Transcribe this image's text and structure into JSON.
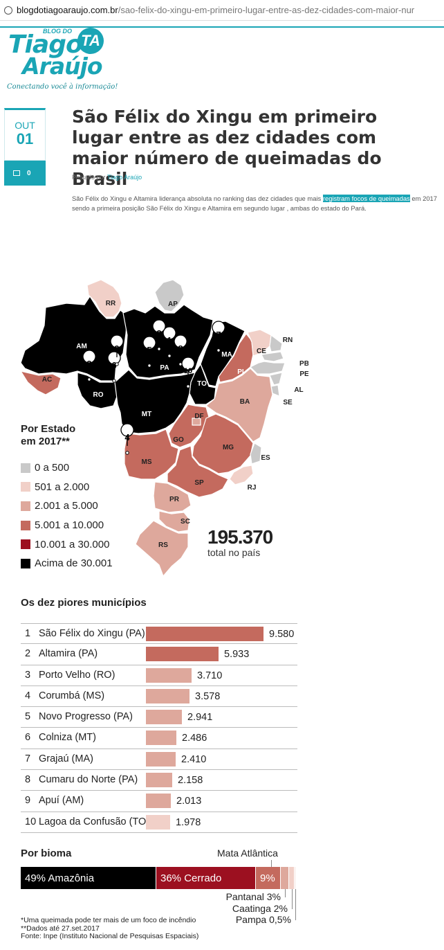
{
  "browser": {
    "url_domain": "blogdotiagoaraujo.com.br",
    "url_path": "/sao-felix-do-xingu-em-primeiro-lugar-entre-as-dez-cidades-com-maior-nur"
  },
  "logo": {
    "blog_do": "BLOG DO",
    "line1": "Tiago",
    "line2": "Araújo",
    "badge": "TA",
    "slogan": "Conectando você à informação!"
  },
  "post": {
    "month": "OUT",
    "day": "01",
    "comments": "0",
    "title": "São Félix do Xingu em primeiro lugar entre as dez cidades com maior número de queimadas do Brasil",
    "byline_prefix": "Postado por",
    "author": "Tiago Araújo",
    "intro_part1": "São Félix do Xingu e Altamira liderança absoluta no ranking das dez cidades que mais ",
    "intro_highlight": "registram focos de queimadas",
    "intro_part2": " em 2017 sendo a primeira posição São Félix do Xingu e Altamira em segundo lugar , ambas do estado do Pará."
  },
  "infographic": {
    "legend_title_1": "Por Estado",
    "legend_title_2": "em 2017**",
    "legend": [
      {
        "label": "0 a 500",
        "color": "#c9c9c9"
      },
      {
        "label": "501 a 2.000",
        "color": "#f1d0c8"
      },
      {
        "label": "2.001 a 5.000",
        "color": "#dea89c"
      },
      {
        "label": "5.001 a 10.000",
        "color": "#c46a5e"
      },
      {
        "label": "10.001 a 30.000",
        "color": "#9c1020"
      },
      {
        "label": "Acima de 30.001",
        "color": "#000000"
      }
    ],
    "total_number": "195.370",
    "total_label": "total no país",
    "states": {
      "RR": "RR",
      "AP": "AP",
      "AM": "AM",
      "PA": "PA",
      "MA": "MA",
      "CE": "CE",
      "RN": "RN",
      "PB": "PB",
      "PE": "PE",
      "AL": "AL",
      "SE": "SE",
      "PI": "PI",
      "AC": "AC",
      "RO": "RO",
      "TO": "TO",
      "BA": "BA",
      "MT": "MT",
      "DF": "DF",
      "GO": "GO",
      "MG": "MG",
      "ES": "ES",
      "MS": "MS",
      "SP": "SP",
      "RJ": "RJ",
      "PR": "PR",
      "SC": "SC",
      "RS": "RS"
    },
    "pins": [
      "1",
      "2",
      "3",
      "4",
      "5",
      "6",
      "7",
      "8",
      "9",
      "10"
    ],
    "worst_title": "Os dez piores municípios",
    "biome_title": "Por bioma",
    "biome_mata_label": "Mata Atlântica",
    "notes": [
      "*Uma queimada pode ter mais de um foco de incêndio",
      "**Dados até 27.set.2017",
      "Fonte: Inpe (Instituto Nacional de Pesquisas Espaciais)"
    ]
  },
  "chart_data": [
    {
      "type": "bar",
      "title": "Os dez piores municípios",
      "categories": [
        "São Félix do Xingu (PA)",
        "Altamira (PA)",
        "Porto Velho (RO)",
        "Corumbá (MS)",
        "Novo Progresso (PA)",
        "Colniza (MT)",
        "Grajaú (MA)",
        "Cumaru do Norte (PA)",
        "Apuí (AM)",
        "Lagoa da Confusão (TO)"
      ],
      "ranks": [
        "1",
        "2",
        "3",
        "4",
        "5",
        "6",
        "7",
        "8",
        "9",
        "10"
      ],
      "values": [
        9580,
        5933,
        3710,
        3578,
        2941,
        2486,
        2410,
        2158,
        2013,
        1978
      ],
      "value_labels": [
        "9.580",
        "5.933",
        "3.710",
        "3.578",
        "2.941",
        "2.486",
        "2.410",
        "2.158",
        "2.013",
        "1.978"
      ],
      "colors": [
        "#c46a5e",
        "#c46a5e",
        "#dea89c",
        "#dea89c",
        "#dea89c",
        "#dea89c",
        "#dea89c",
        "#dea89c",
        "#dea89c",
        "#f1d0c8"
      ]
    },
    {
      "type": "bar",
      "title": "Por bioma",
      "categories": [
        "Amazônia",
        "Cerrado",
        "Mata Atlântica",
        "Pantanal",
        "Caatinga",
        "Pampa"
      ],
      "values": [
        49,
        36,
        9,
        3,
        2,
        0.5
      ],
      "labels": [
        "49% Amazônia",
        "36% Cerrado",
        "9%",
        "Pantanal 3%",
        "Caatinga 2%",
        "Pampa 0,5%"
      ],
      "colors": [
        "#000000",
        "#9c1020",
        "#c46a5e",
        "#dea89c",
        "#f1d0c8",
        "#f5e3de"
      ]
    }
  ]
}
